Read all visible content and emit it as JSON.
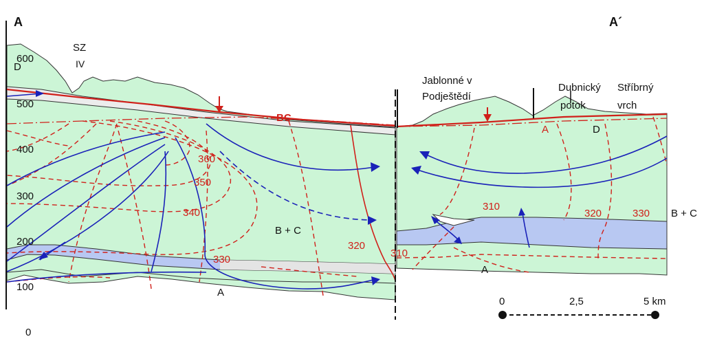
{
  "section": {
    "start_label": "A",
    "end_label": "A´",
    "elevation_ticks": [
      "600",
      "500",
      "400",
      "300",
      "200",
      "100",
      "0"
    ],
    "sz": "SZ",
    "iv": "IV",
    "d_top": "D",
    "places": {
      "jablonne_1": "Jablonné v",
      "jablonne_2": "Podještědí",
      "dubnicky_1": "Dubnický",
      "dubnicky_2": "potok",
      "stribrny_1": "Stříbrný",
      "stribrny_2": "vrch"
    },
    "units": {
      "bc": "BC",
      "bc_main": "B + C",
      "bc_right": "B + C",
      "a_left": "A",
      "a_right": "A",
      "a_red": "A",
      "d_right": "D"
    },
    "isolines": {
      "i360": "360",
      "i350": "350",
      "i340": "340",
      "i330": "330",
      "i320_left": "320",
      "i310_left": "310",
      "i310_right": "310",
      "i320_right": "320",
      "i330_right": "330"
    },
    "scale": {
      "zero": "0",
      "mid": "2,5",
      "end": "5 km"
    },
    "colors": {
      "aquifer": "#ccf5d6",
      "confining": "#b8c8f2",
      "confining_light": "#ececec",
      "flow": "#1a22b8",
      "isoline": "#d0201a"
    }
  }
}
